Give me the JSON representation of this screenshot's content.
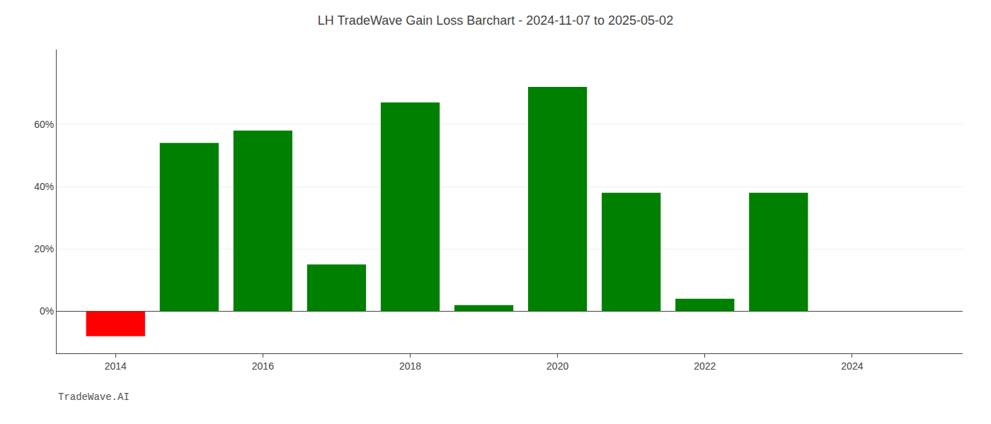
{
  "chart_data": {
    "type": "bar",
    "title": "LH TradeWave Gain Loss Barchart - 2024-11-07 to 2025-05-02",
    "x": [
      2014,
      2015,
      2016,
      2017,
      2018,
      2019,
      2020,
      2021,
      2022,
      2023
    ],
    "values": [
      -0.08,
      0.54,
      0.58,
      0.15,
      0.67,
      0.02,
      0.72,
      0.38,
      0.04,
      0.38
    ],
    "colors": [
      "#ff0000",
      "#008000",
      "#008000",
      "#008000",
      "#008000",
      "#008000",
      "#008000",
      "#008000",
      "#008000",
      "#008000"
    ],
    "xlim": [
      2013.2,
      2025.5
    ],
    "xticks": [
      2014,
      2016,
      2018,
      2020,
      2022,
      2024
    ],
    "ylim": [
      -0.135,
      0.84
    ],
    "yticks": [
      {
        "value": 0.0,
        "label": "0%"
      },
      {
        "value": 0.2,
        "label": "20%"
      },
      {
        "value": 0.4,
        "label": "40%"
      },
      {
        "value": 0.6,
        "label": "60%"
      }
    ],
    "grid": true,
    "annotations": [
      "TradeWave.AI"
    ]
  }
}
